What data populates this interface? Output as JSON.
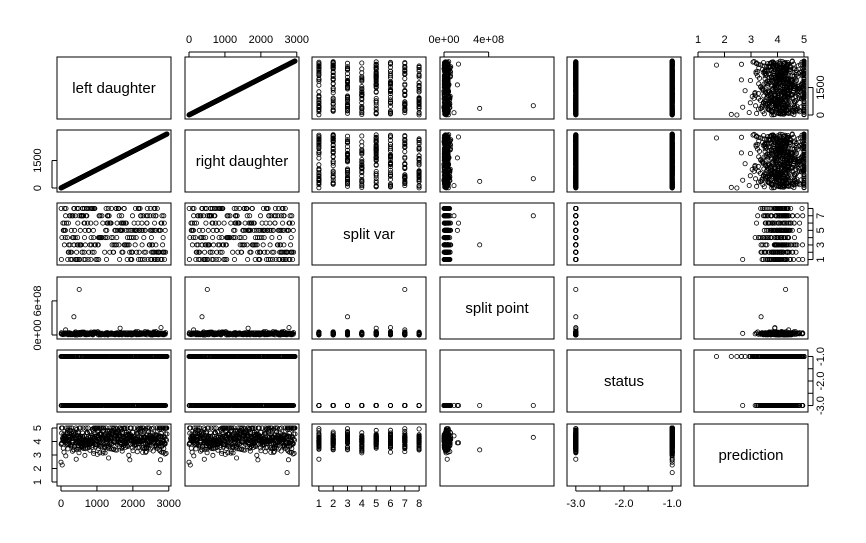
{
  "chart_data": {
    "type": "scatter",
    "variables": [
      {
        "label": "left daughter",
        "range": [
          0,
          2950
        ],
        "ticks": [
          0,
          1000,
          2000,
          3000
        ],
        "tick_labels": [
          "0",
          "1000",
          "2000",
          "3000"
        ]
      },
      {
        "label": "right daughter",
        "range": [
          0,
          2950
        ],
        "ticks": [
          0,
          1500
        ],
        "tick_labels": [
          "0",
          "1500"
        ]
      },
      {
        "label": "split var",
        "range": [
          0.8,
          8.2
        ],
        "ticks": [
          1,
          2,
          3,
          4,
          5,
          6,
          7,
          8
        ],
        "tick_labels": [
          "1",
          "2",
          "3",
          "4",
          "5",
          "6",
          "7",
          "8"
        ]
      },
      {
        "label": "split point",
        "range": [
          0,
          950000000
        ],
        "ticks": [
          0,
          400000000
        ],
        "tick_labels": [
          "0e+00",
          "4e+08"
        ],
        "ticks_alt": [
          0,
          600000000
        ],
        "tick_labels_alt": [
          "0e+00",
          "6e+08"
        ]
      },
      {
        "label": "status",
        "range": [
          -3.1,
          -0.9
        ],
        "ticks": [
          -3.0,
          -2.5,
          -2.0,
          -1.5,
          -1.0
        ],
        "tick_labels": [
          "-3.0",
          "",
          "-2.0",
          "",
          "-1.0"
        ]
      },
      {
        "label": "prediction",
        "range": [
          1,
          5
        ],
        "ticks": [
          1,
          2,
          3,
          4,
          5
        ],
        "tick_labels": [
          "1",
          "2",
          "3",
          "4",
          "5"
        ]
      }
    ],
    "n_points": 2951,
    "value_sets": {
      "split_var_values": [
        1,
        2,
        3,
        4,
        5,
        6,
        7,
        8
      ],
      "status_values": [
        -3,
        -1
      ],
      "split_point_outliers": [
        90000000,
        120000000,
        130000000,
        310000000,
        320000000,
        540000000,
        550000000,
        800000000,
        900000000
      ]
    },
    "grid": false,
    "legend": "none"
  }
}
